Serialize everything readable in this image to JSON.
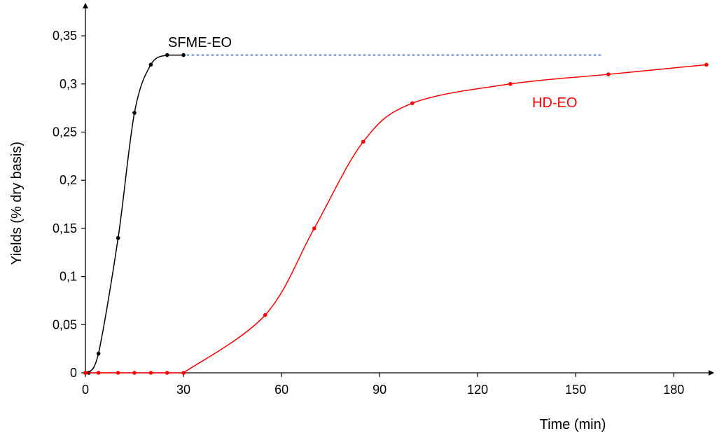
{
  "chart_data": {
    "type": "line",
    "title": "",
    "xlabel": "Time (min)",
    "ylabel": "Yields (% dry basis)",
    "xlim": [
      0,
      192
    ],
    "ylim": [
      0,
      0.38
    ],
    "x_ticks": [
      0,
      30,
      60,
      90,
      120,
      150,
      180
    ],
    "x_tick_labels": [
      "0",
      "30",
      "60",
      "90",
      "120",
      "150",
      "180"
    ],
    "y_ticks": [
      0,
      0.05,
      0.1,
      0.15,
      0.2,
      0.25,
      0.3,
      0.35
    ],
    "y_tick_labels": [
      "0",
      "0,05",
      "0,1",
      "0,15",
      "0,2",
      "0,25",
      "0,3",
      "0,35"
    ],
    "grid": false,
    "legend": "none",
    "series": [
      {
        "name": "SFME-EO",
        "color": "#000000",
        "x": [
          0,
          1,
          4,
          10,
          15,
          20,
          25,
          30
        ],
        "y": [
          0,
          0,
          0.02,
          0.14,
          0.27,
          0.32,
          0.33,
          0.33
        ],
        "extension": {
          "x": [
            30,
            158
          ],
          "y": 0.33,
          "style": "dotted",
          "color": "#8eaad6"
        }
      },
      {
        "name": "HD-EO",
        "color": "#ff0000",
        "x": [
          0,
          4,
          10,
          15,
          20,
          25,
          30,
          55,
          70,
          85,
          100,
          130,
          160,
          190
        ],
        "y": [
          0,
          0,
          0,
          0,
          0,
          0,
          0,
          0.06,
          0.15,
          0.24,
          0.28,
          0.3,
          0.31,
          0.32
        ]
      }
    ]
  }
}
